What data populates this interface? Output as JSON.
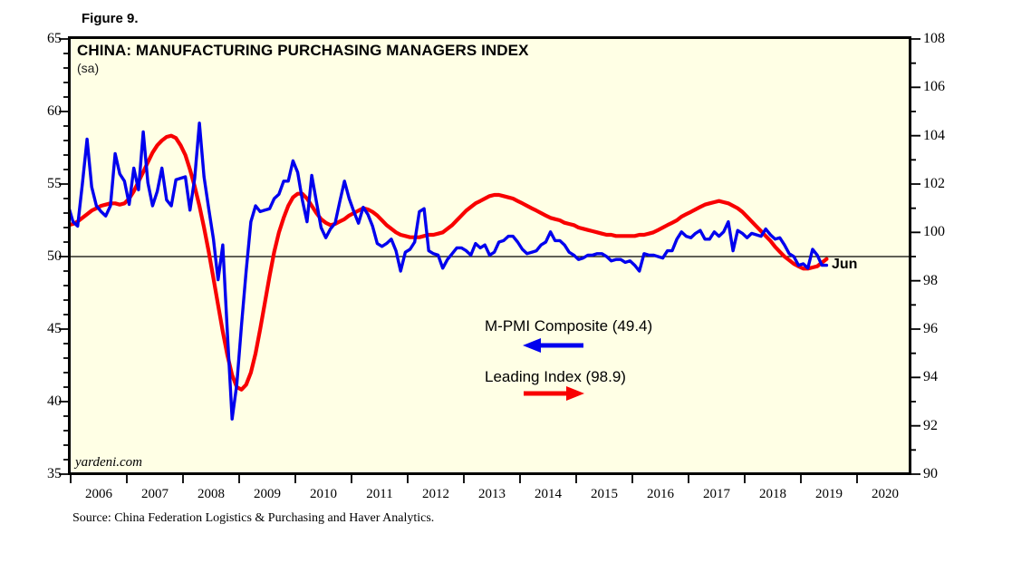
{
  "figure_label": "Figure 9.",
  "watermark": "yardeni.com",
  "source": "Source: China Federation Logistics & Purchasing and Haver Analytics.",
  "colors": {
    "pmi_blue": "#0000EE",
    "leading_red": "#F80000",
    "plot_background": "#FFFFE5",
    "frame": "#000000"
  },
  "chart_data": {
    "type": "line",
    "title": "CHINA: MANUFACTURING PURCHASING MANAGERS INDEX",
    "subtitle": "(sa)",
    "frequency": "monthly",
    "x_start": "2005-12",
    "x_end": "2019-06",
    "x_tick_years": [
      2006,
      2007,
      2008,
      2009,
      2010,
      2011,
      2012,
      2013,
      2014,
      2015,
      2016,
      2017,
      2018,
      2019,
      2020
    ],
    "left_axis": {
      "range": [
        35,
        65
      ],
      "major_ticks": [
        65,
        60,
        55,
        50,
        45,
        40,
        35
      ],
      "minor_step": 1
    },
    "right_axis": {
      "range": [
        90,
        108
      ],
      "major_ticks": [
        108,
        106,
        104,
        102,
        100,
        98,
        96,
        94,
        92,
        90
      ],
      "minor_step": 1
    },
    "reference_line": {
      "axis": "left",
      "value": 50
    },
    "grid": "off",
    "legend_position": "center-inside",
    "legend": [
      {
        "label": "M-PMI Composite (49.4)",
        "arrow": "left",
        "color": "#0000EE"
      },
      {
        "label": "Leading Index (98.9)",
        "arrow": "right",
        "color": "#F80000"
      }
    ],
    "annotations": [
      {
        "text": "Jun",
        "color": "#0000EE",
        "attached_to": "end-of-pmi-line"
      }
    ],
    "series": [
      {
        "id": "pmi-line",
        "name": "M-PMI Composite",
        "latest_value": 49.4,
        "axis": "left",
        "color": "#0000EE",
        "start": "2005-12",
        "values": [
          53.5,
          52.4,
          52.1,
          55.0,
          58.1,
          54.8,
          53.5,
          53.1,
          52.8,
          53.5,
          57.1,
          55.7,
          55.2,
          53.6,
          56.1,
          54.6,
          58.6,
          55.1,
          53.5,
          54.5,
          56.1,
          53.9,
          53.5,
          55.3,
          55.4,
          55.5,
          53.2,
          55.4,
          59.2,
          55.5,
          53.3,
          51.2,
          48.4,
          50.8,
          44.6,
          38.8,
          41.2,
          45.3,
          49.0,
          52.4,
          53.5,
          53.1,
          53.2,
          53.3,
          54.0,
          54.3,
          55.2,
          55.2,
          56.6,
          55.8,
          53.9,
          52.4,
          55.6,
          53.8,
          52.0,
          51.3,
          51.9,
          52.3,
          53.8,
          55.2,
          54.0,
          53.1,
          52.3,
          53.4,
          52.9,
          52.1,
          50.9,
          50.7,
          50.9,
          51.2,
          50.4,
          49.0,
          50.3,
          50.5,
          51.0,
          53.1,
          53.3,
          50.4,
          50.2,
          50.1,
          49.2,
          49.8,
          50.2,
          50.6,
          50.6,
          50.4,
          50.1,
          50.9,
          50.6,
          50.8,
          50.1,
          50.3,
          51.0,
          51.1,
          51.4,
          51.4,
          51.0,
          50.5,
          50.2,
          50.3,
          50.4,
          50.8,
          51.0,
          51.7,
          51.1,
          51.1,
          50.8,
          50.3,
          50.1,
          49.8,
          49.9,
          50.1,
          50.1,
          50.2,
          50.2,
          50.0,
          49.7,
          49.8,
          49.8,
          49.6,
          49.7,
          49.4,
          49.0,
          50.2,
          50.1,
          50.1,
          50.0,
          49.9,
          50.4,
          50.4,
          51.2,
          51.7,
          51.4,
          51.3,
          51.6,
          51.8,
          51.2,
          51.2,
          51.7,
          51.4,
          51.7,
          52.4,
          50.4,
          51.8,
          51.6,
          51.3,
          51.6,
          51.5,
          51.4,
          51.9,
          51.5,
          51.2,
          51.3,
          50.8,
          50.2,
          50.0,
          49.4,
          49.5,
          49.2,
          50.5,
          50.1,
          49.4,
          49.4
        ]
      },
      {
        "id": "leading-line",
        "name": "Leading Index",
        "latest_value": 98.9,
        "axis": "right",
        "color": "#F80000",
        "start": "2005-12",
        "values": [
          100.3,
          100.35,
          100.45,
          100.6,
          100.75,
          100.9,
          101.0,
          101.1,
          101.15,
          101.2,
          101.2,
          101.15,
          101.2,
          101.4,
          101.7,
          102.1,
          102.5,
          102.9,
          103.3,
          103.6,
          103.8,
          103.95,
          104.0,
          103.9,
          103.6,
          103.2,
          102.6,
          101.9,
          101.1,
          100.2,
          99.2,
          98.1,
          97.0,
          95.9,
          94.9,
          94.1,
          93.6,
          93.5,
          93.7,
          94.2,
          95.0,
          96.0,
          97.1,
          98.2,
          99.2,
          100.0,
          100.6,
          101.1,
          101.45,
          101.6,
          101.6,
          101.4,
          101.1,
          100.8,
          100.55,
          100.4,
          100.3,
          100.35,
          100.45,
          100.55,
          100.7,
          100.8,
          100.9,
          101.0,
          100.95,
          100.85,
          100.7,
          100.5,
          100.3,
          100.15,
          100.0,
          99.9,
          99.85,
          99.8,
          99.8,
          99.8,
          99.85,
          99.9,
          99.9,
          99.95,
          100.0,
          100.15,
          100.3,
          100.5,
          100.7,
          100.9,
          101.05,
          101.2,
          101.3,
          101.4,
          101.5,
          101.55,
          101.55,
          101.5,
          101.45,
          101.4,
          101.3,
          101.2,
          101.1,
          101.0,
          100.9,
          100.8,
          100.7,
          100.6,
          100.55,
          100.5,
          100.4,
          100.35,
          100.3,
          100.2,
          100.15,
          100.1,
          100.05,
          100.0,
          99.95,
          99.9,
          99.9,
          99.85,
          99.85,
          99.85,
          99.85,
          99.85,
          99.9,
          99.9,
          99.95,
          100.0,
          100.1,
          100.2,
          100.3,
          100.4,
          100.5,
          100.65,
          100.75,
          100.85,
          100.95,
          101.05,
          101.15,
          101.2,
          101.25,
          101.3,
          101.25,
          101.2,
          101.1,
          101.0,
          100.85,
          100.65,
          100.45,
          100.25,
          100.05,
          99.85,
          99.65,
          99.4,
          99.2,
          99.0,
          98.85,
          98.7,
          98.6,
          98.5,
          98.5,
          98.55,
          98.6,
          98.75,
          98.9
        ]
      }
    ]
  }
}
